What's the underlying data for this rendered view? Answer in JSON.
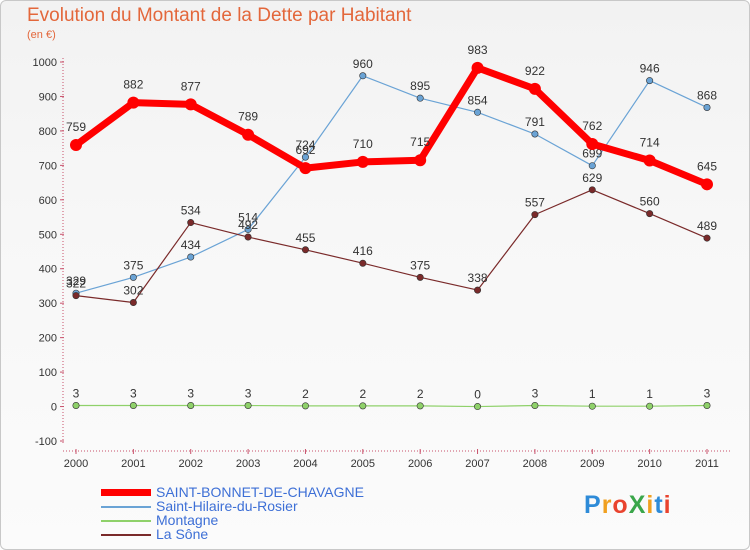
{
  "header": {
    "title": "Evolution du Montant de la Dette par Habitant",
    "subtitle": "(en €)"
  },
  "logo": {
    "text": "ProXiti",
    "colors": [
      "#2e8bd8",
      "#f0a020",
      "#e9432e",
      "#3aa64a",
      "#f0a020",
      "#2e8bd8",
      "#e9432e"
    ]
  },
  "chart_data": {
    "type": "line",
    "title": "Evolution du Montant de la Dette par Habitant",
    "subtitle": "(en €)",
    "x": [
      "2000",
      "2001",
      "2002",
      "2003",
      "2004",
      "2005",
      "2006",
      "2007",
      "2008",
      "2009",
      "2010",
      "2011"
    ],
    "ylim": [
      -100,
      1000
    ],
    "yticks": [
      "1000",
      "900",
      "800",
      "700",
      "600",
      "500",
      "400",
      "300",
      "200",
      "100",
      "0",
      "-100"
    ],
    "grid": false,
    "legend_position": "bottom-left",
    "series": [
      {
        "name": "SAINT-BONNET-DE-CHAVAGNE",
        "color": "#ff0000",
        "values": [
          759,
          882,
          877,
          789,
          692,
          710,
          715,
          983,
          922,
          762,
          714,
          645
        ]
      },
      {
        "name": "Saint-Hilaire-du-Rosier",
        "color": "#6aa3d5",
        "values": [
          329,
          375,
          434,
          514,
          724,
          960,
          895,
          854,
          791,
          699,
          946,
          868
        ]
      },
      {
        "name": "Montagne",
        "color": "#8fd16a",
        "values": [
          3,
          3,
          3,
          3,
          2,
          2,
          2,
          0,
          3,
          1,
          1,
          3
        ]
      },
      {
        "name": "La Sône",
        "color": "#7a2a2a",
        "values": [
          322,
          302,
          534,
          492,
          455,
          416,
          375,
          338,
          557,
          629,
          560,
          489
        ]
      }
    ]
  }
}
